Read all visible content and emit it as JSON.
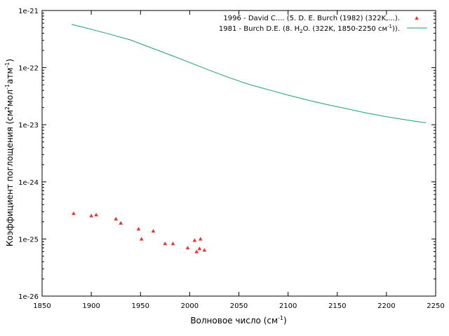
{
  "chart_data": {
    "type": "scatter",
    "xlabel": "Волновое число (см",
    "xlabel_sup": "-1",
    "xlabel_end": ")",
    "ylabel_parts": [
      "Коэффициент поглощения (см",
      "2",
      "мол",
      "-1",
      "атм",
      "-1",
      ")"
    ],
    "xlim": [
      1850,
      2250
    ],
    "ylim": [
      1e-26,
      1e-21
    ],
    "yscale": "log",
    "xticks": [
      1850,
      1900,
      1950,
      2000,
      2050,
      2100,
      2150,
      2200,
      2250
    ],
    "yticks": [
      {
        "value": 1e-21,
        "label": "1e-21"
      },
      {
        "value": 1e-22,
        "label": "1e-22"
      },
      {
        "value": 1e-23,
        "label": "1e-23"
      },
      {
        "value": 1e-24,
        "label": "1e-24"
      },
      {
        "value": 1e-25,
        "label": "1e-25"
      },
      {
        "value": 1e-26,
        "label": "1e-26"
      }
    ],
    "grid": false,
    "legend_position": "top-right",
    "series": [
      {
        "name": "1996 - David C.... (5. D. E. Burch (1982) (322K,...).",
        "kind": "points",
        "color": "#e8372a",
        "points": [
          [
            1882,
            2.8e-25
          ],
          [
            1900,
            2.55e-25
          ],
          [
            1905,
            2.65e-25
          ],
          [
            1925,
            2.25e-25
          ],
          [
            1930,
            1.9e-25
          ],
          [
            1948,
            1.5e-25
          ],
          [
            1951,
            1e-25
          ],
          [
            1963,
            1.38e-25
          ],
          [
            1975,
            8.3e-26
          ],
          [
            1983,
            8.3e-26
          ],
          [
            1998,
            7e-26
          ],
          [
            2005,
            9.5e-26
          ],
          [
            2007,
            6e-26
          ],
          [
            2010,
            6.8e-26
          ],
          [
            2011,
            1e-25
          ],
          [
            2015,
            6.4e-26
          ]
        ]
      },
      {
        "name": "1981 - Burch D.E. (8. H",
        "name_sub": "2",
        "name_end": "O. (322K, 1850-2250 см",
        "name_sup": "-1",
        "name_tail": ")).",
        "kind": "line",
        "color": "#1a9e77",
        "points": [
          [
            1880,
            5.7e-22
          ],
          [
            1900,
            4.7e-22
          ],
          [
            1920,
            3.8e-22
          ],
          [
            1940,
            3.05e-22
          ],
          [
            1960,
            2.25e-22
          ],
          [
            1980,
            1.67e-22
          ],
          [
            2000,
            1.23e-22
          ],
          [
            2020,
            9e-23
          ],
          [
            2040,
            6.7e-23
          ],
          [
            2060,
            5.1e-23
          ],
          [
            2080,
            4.1e-23
          ],
          [
            2100,
            3.3e-23
          ],
          [
            2120,
            2.7e-23
          ],
          [
            2140,
            2.25e-23
          ],
          [
            2160,
            1.9e-23
          ],
          [
            2180,
            1.6e-23
          ],
          [
            2200,
            1.38e-23
          ],
          [
            2220,
            1.22e-23
          ],
          [
            2240,
            1.08e-23
          ]
        ]
      }
    ]
  }
}
